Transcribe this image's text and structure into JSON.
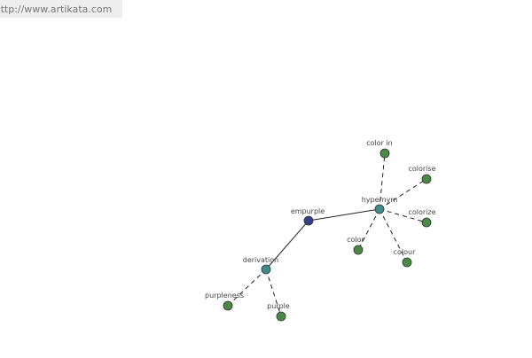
{
  "header": {
    "url": "http://www.artikata.com"
  },
  "nodes": [
    {
      "label": "empurple"
    },
    {
      "label": "hypernym"
    },
    {
      "label": "derivation"
    },
    {
      "label": "color in"
    },
    {
      "label": "colorise"
    },
    {
      "label": "colorize"
    },
    {
      "label": "colour"
    },
    {
      "label": "color"
    },
    {
      "label": "purpleness"
    },
    {
      "label": "purple"
    }
  ]
}
